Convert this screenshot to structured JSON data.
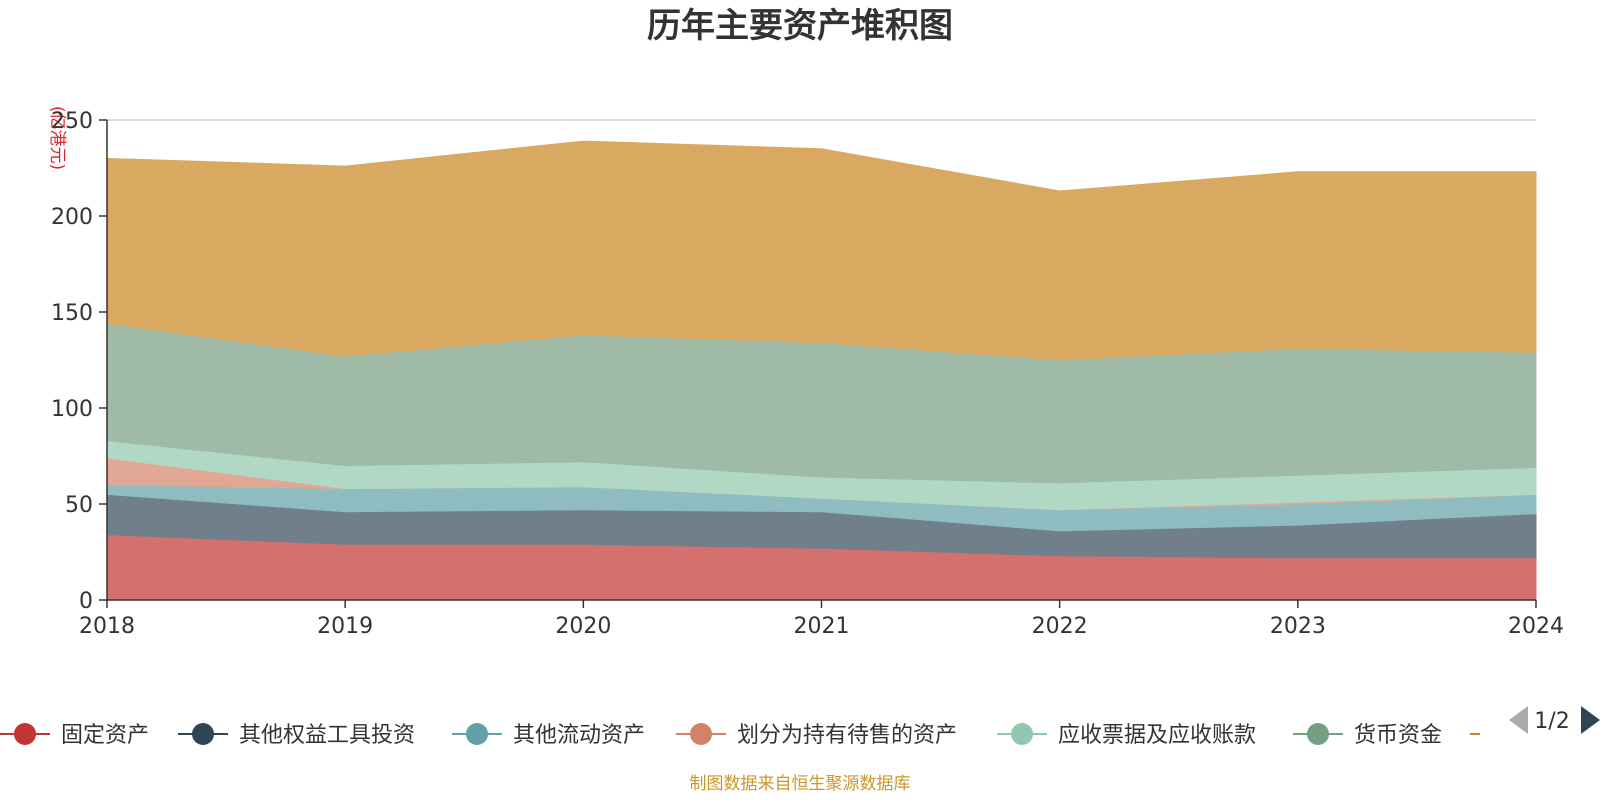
{
  "chart_data": {
    "type": "area",
    "stacked": true,
    "title": "历年主要资产堆积图",
    "unit": "(亿港元)",
    "source": "制图数据来自恒生聚源数据库",
    "categories": [
      "2018",
      "2019",
      "2020",
      "2021",
      "2022",
      "2023",
      "2024"
    ],
    "ylim": [
      0,
      250
    ],
    "yticks": [
      0,
      50,
      100,
      150,
      200,
      250
    ],
    "grid": true,
    "legend_position": "bottom",
    "legend_page": "1/2",
    "series": [
      {
        "name": "固定资产",
        "color": "#d4706d",
        "legend_color": "#c23531",
        "values": [
          34,
          29,
          29,
          27,
          23,
          22,
          22
        ]
      },
      {
        "name": "其他权益工具投资",
        "color": "#707f8a",
        "legend_color": "#2f4554",
        "values": [
          21,
          17,
          18,
          19,
          13,
          17,
          23
        ]
      },
      {
        "name": "其他流动资产",
        "color": "#8fbcc1",
        "legend_color": "#61a0a8",
        "values": [
          5,
          12,
          12,
          7,
          11,
          11,
          10
        ]
      },
      {
        "name": "划分为持有待售的资产",
        "color": "#e0a894",
        "legend_color": "#d48265",
        "values": [
          14,
          0,
          0,
          0,
          0,
          1,
          0
        ]
      },
      {
        "name": "应收票据及应收账款",
        "color": "#b0d8c5",
        "legend_color": "#91c7ae",
        "values": [
          9,
          12,
          13,
          11,
          14,
          14,
          14
        ]
      },
      {
        "name": "货币资金",
        "color": "#9fbba8",
        "legend_color": "#749f83",
        "values": [
          61,
          57,
          66,
          70,
          64,
          66,
          60
        ]
      },
      {
        "name": "",
        "color": "#d9a962",
        "legend_color": "#ca8622",
        "values": [
          86,
          99,
          101,
          101,
          88,
          92,
          94
        ]
      }
    ]
  }
}
